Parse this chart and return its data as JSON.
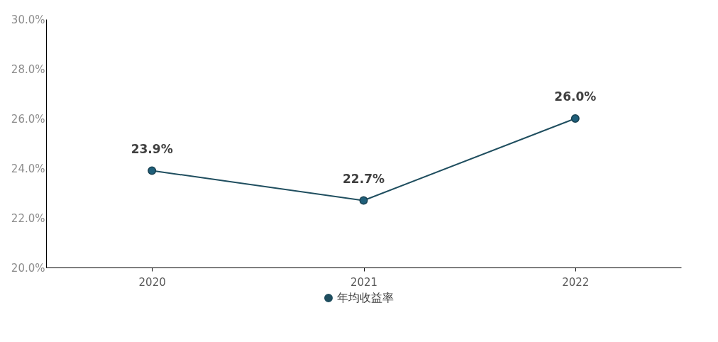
{
  "chart_data": {
    "type": "line",
    "categories": [
      "2020",
      "2021",
      "2022"
    ],
    "series": [
      {
        "name": "年均收益率",
        "color": "#1f4e5f",
        "values": [
          23.9,
          22.7,
          26.0
        ],
        "value_labels": [
          "23.9%",
          "22.7%",
          "26.0%"
        ]
      }
    ],
    "ylim": [
      20,
      30
    ],
    "yticks": [
      {
        "value": 20,
        "label": "20.0%"
      },
      {
        "value": 22,
        "label": "22.0%"
      },
      {
        "value": 24,
        "label": "24.0%"
      },
      {
        "value": 26,
        "label": "26.0%"
      },
      {
        "value": 28,
        "label": "28.0%"
      },
      {
        "value": 30,
        "label": "30.0%"
      }
    ],
    "grid": false,
    "legend": "bottom",
    "marker": "circle",
    "line_style": "solid"
  }
}
